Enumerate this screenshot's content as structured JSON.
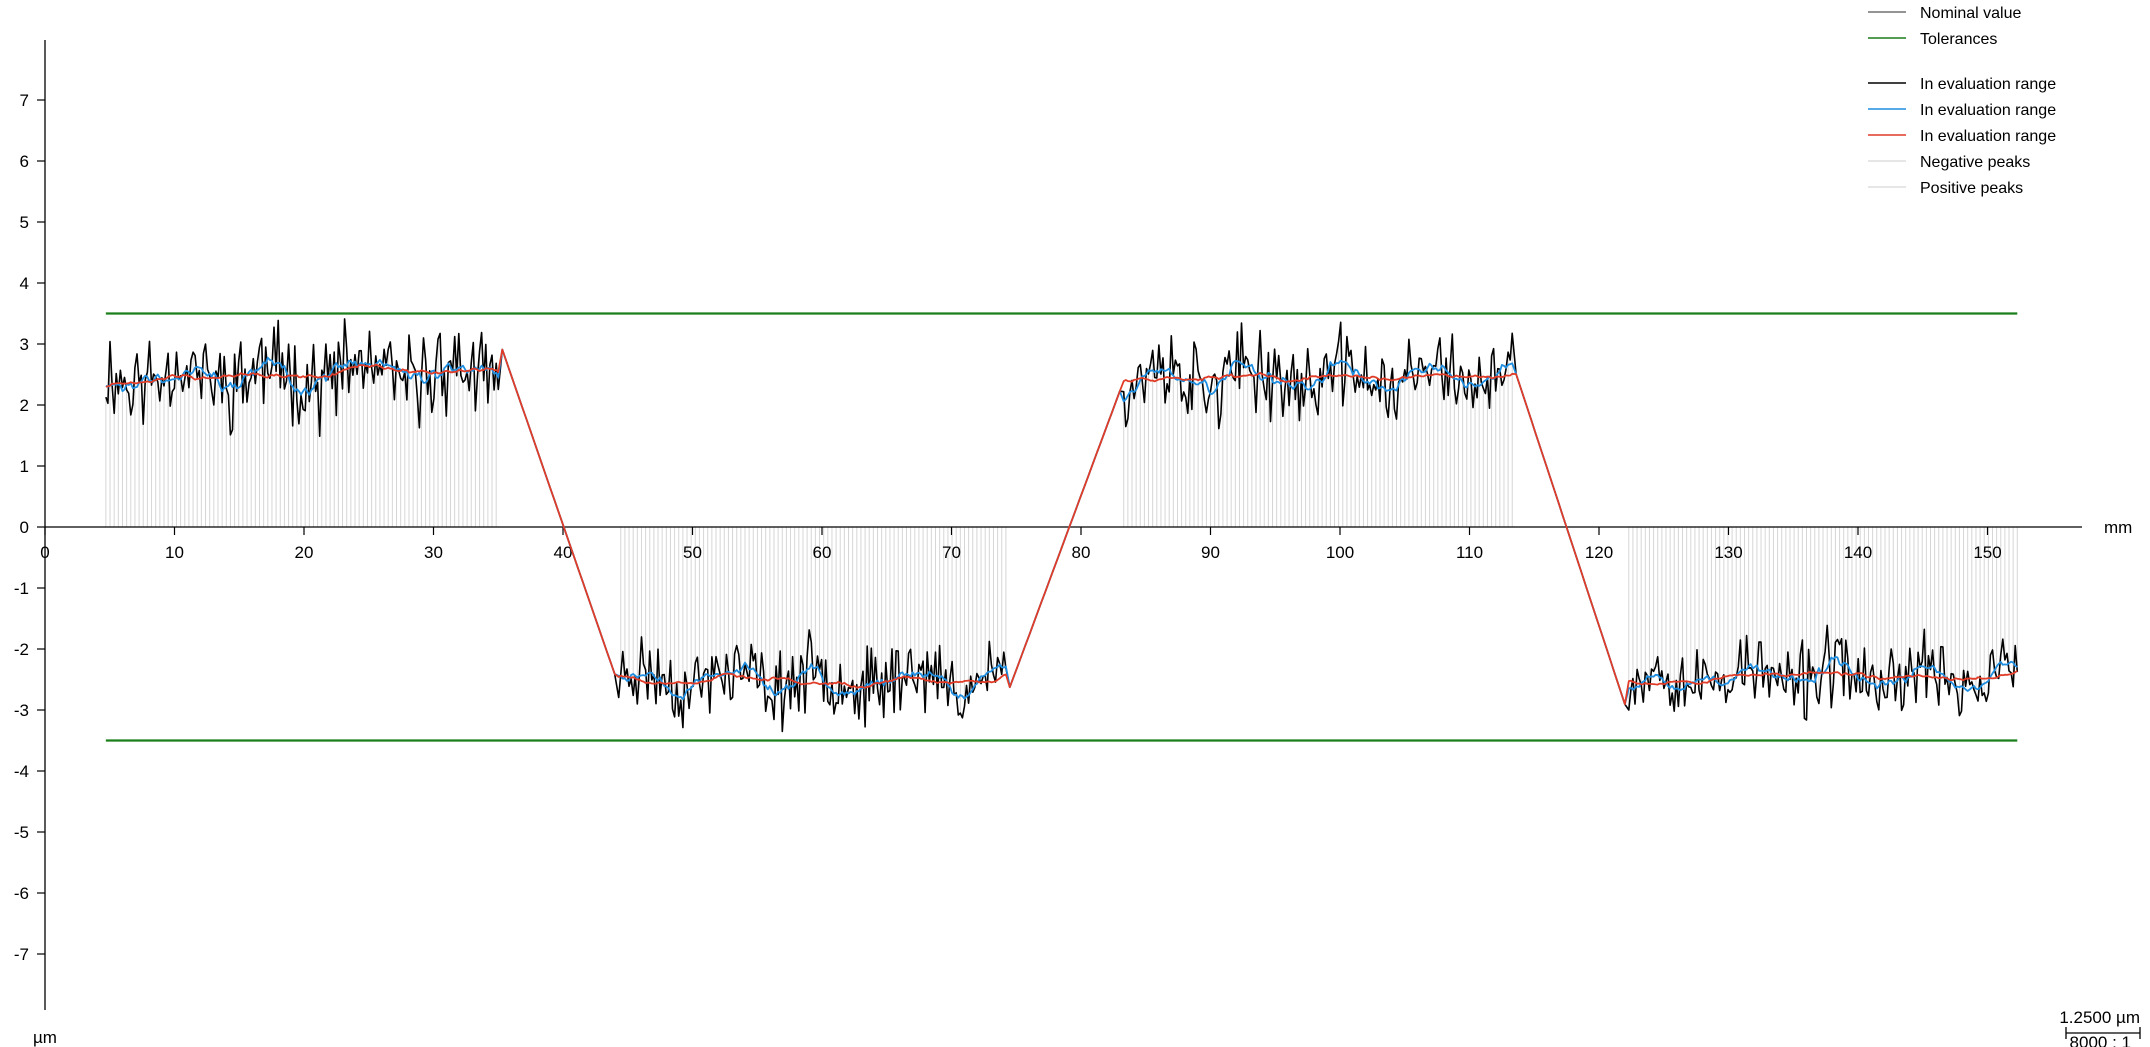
{
  "chart_data": {
    "type": "line",
    "title": "",
    "xlabel": "mm",
    "ylabel": "µm",
    "xlim": [
      0,
      158
    ],
    "ylim": [
      -8,
      8
    ],
    "x_ticks": [
      0,
      10,
      20,
      30,
      40,
      50,
      60,
      70,
      80,
      90,
      100,
      110,
      120,
      130,
      140,
      150
    ],
    "y_ticks": [
      -7,
      -6,
      -5,
      -4,
      -3,
      -2,
      -1,
      0,
      1,
      2,
      3,
      4,
      5,
      6,
      7
    ],
    "tolerances": [
      3.5,
      -3.5
    ],
    "nominal": 0,
    "scale": {
      "value": "1.2500 µm",
      "ratio": "8000 : 1"
    },
    "legend_position": "top-right",
    "legend": [
      {
        "label": "Nominal value",
        "color": "#707070"
      },
      {
        "label": "Tolerances",
        "color": "#1a7f1a"
      },
      {
        "label": "In evaluation range",
        "color": "#000000"
      },
      {
        "label": "In evaluation range",
        "color": "#1f8ee0"
      },
      {
        "label": "In evaluation range",
        "color": "#e03c28"
      },
      {
        "label": "Negative peaks",
        "color": "#d6d6d6"
      },
      {
        "label": "Positive peaks",
        "color": "#d6d6d6"
      }
    ],
    "segments": [
      {
        "kind": "flat",
        "x_start": 4.7,
        "x_end": 35.0,
        "level": 2.5,
        "noise": 0.65,
        "wave": 0.15,
        "seed": 11
      },
      {
        "kind": "ramp",
        "x_start": 35.0,
        "x_end": 44.3,
        "y_start": 3.1,
        "y_end": -2.6
      },
      {
        "kind": "flat",
        "x_start": 44.3,
        "x_end": 74.2,
        "level": -2.5,
        "noise": 0.55,
        "wave": 0.15,
        "seed": 23
      },
      {
        "kind": "ramp",
        "x_start": 74.2,
        "x_end": 83.3,
        "y_start": -2.8,
        "y_end": 2.4
      },
      {
        "kind": "flat",
        "x_start": 83.3,
        "x_end": 113.3,
        "level": 2.45,
        "noise": 0.6,
        "wave": 0.15,
        "seed": 37
      },
      {
        "kind": "ramp",
        "x_start": 113.3,
        "x_end": 122.3,
        "y_start": 2.7,
        "y_end": -3.1
      },
      {
        "kind": "flat",
        "x_start": 122.3,
        "x_end": 152.3,
        "level": -2.45,
        "noise": 0.55,
        "wave": 0.15,
        "seed": 53
      }
    ],
    "series": [
      {
        "name": "In evaluation range",
        "color": "#000000",
        "smoothing": 0
      },
      {
        "name": "In evaluation range",
        "color": "#1f8ee0",
        "smoothing": 5
      },
      {
        "name": "In evaluation range",
        "color": "#e03c28",
        "smoothing": 18
      }
    ]
  }
}
